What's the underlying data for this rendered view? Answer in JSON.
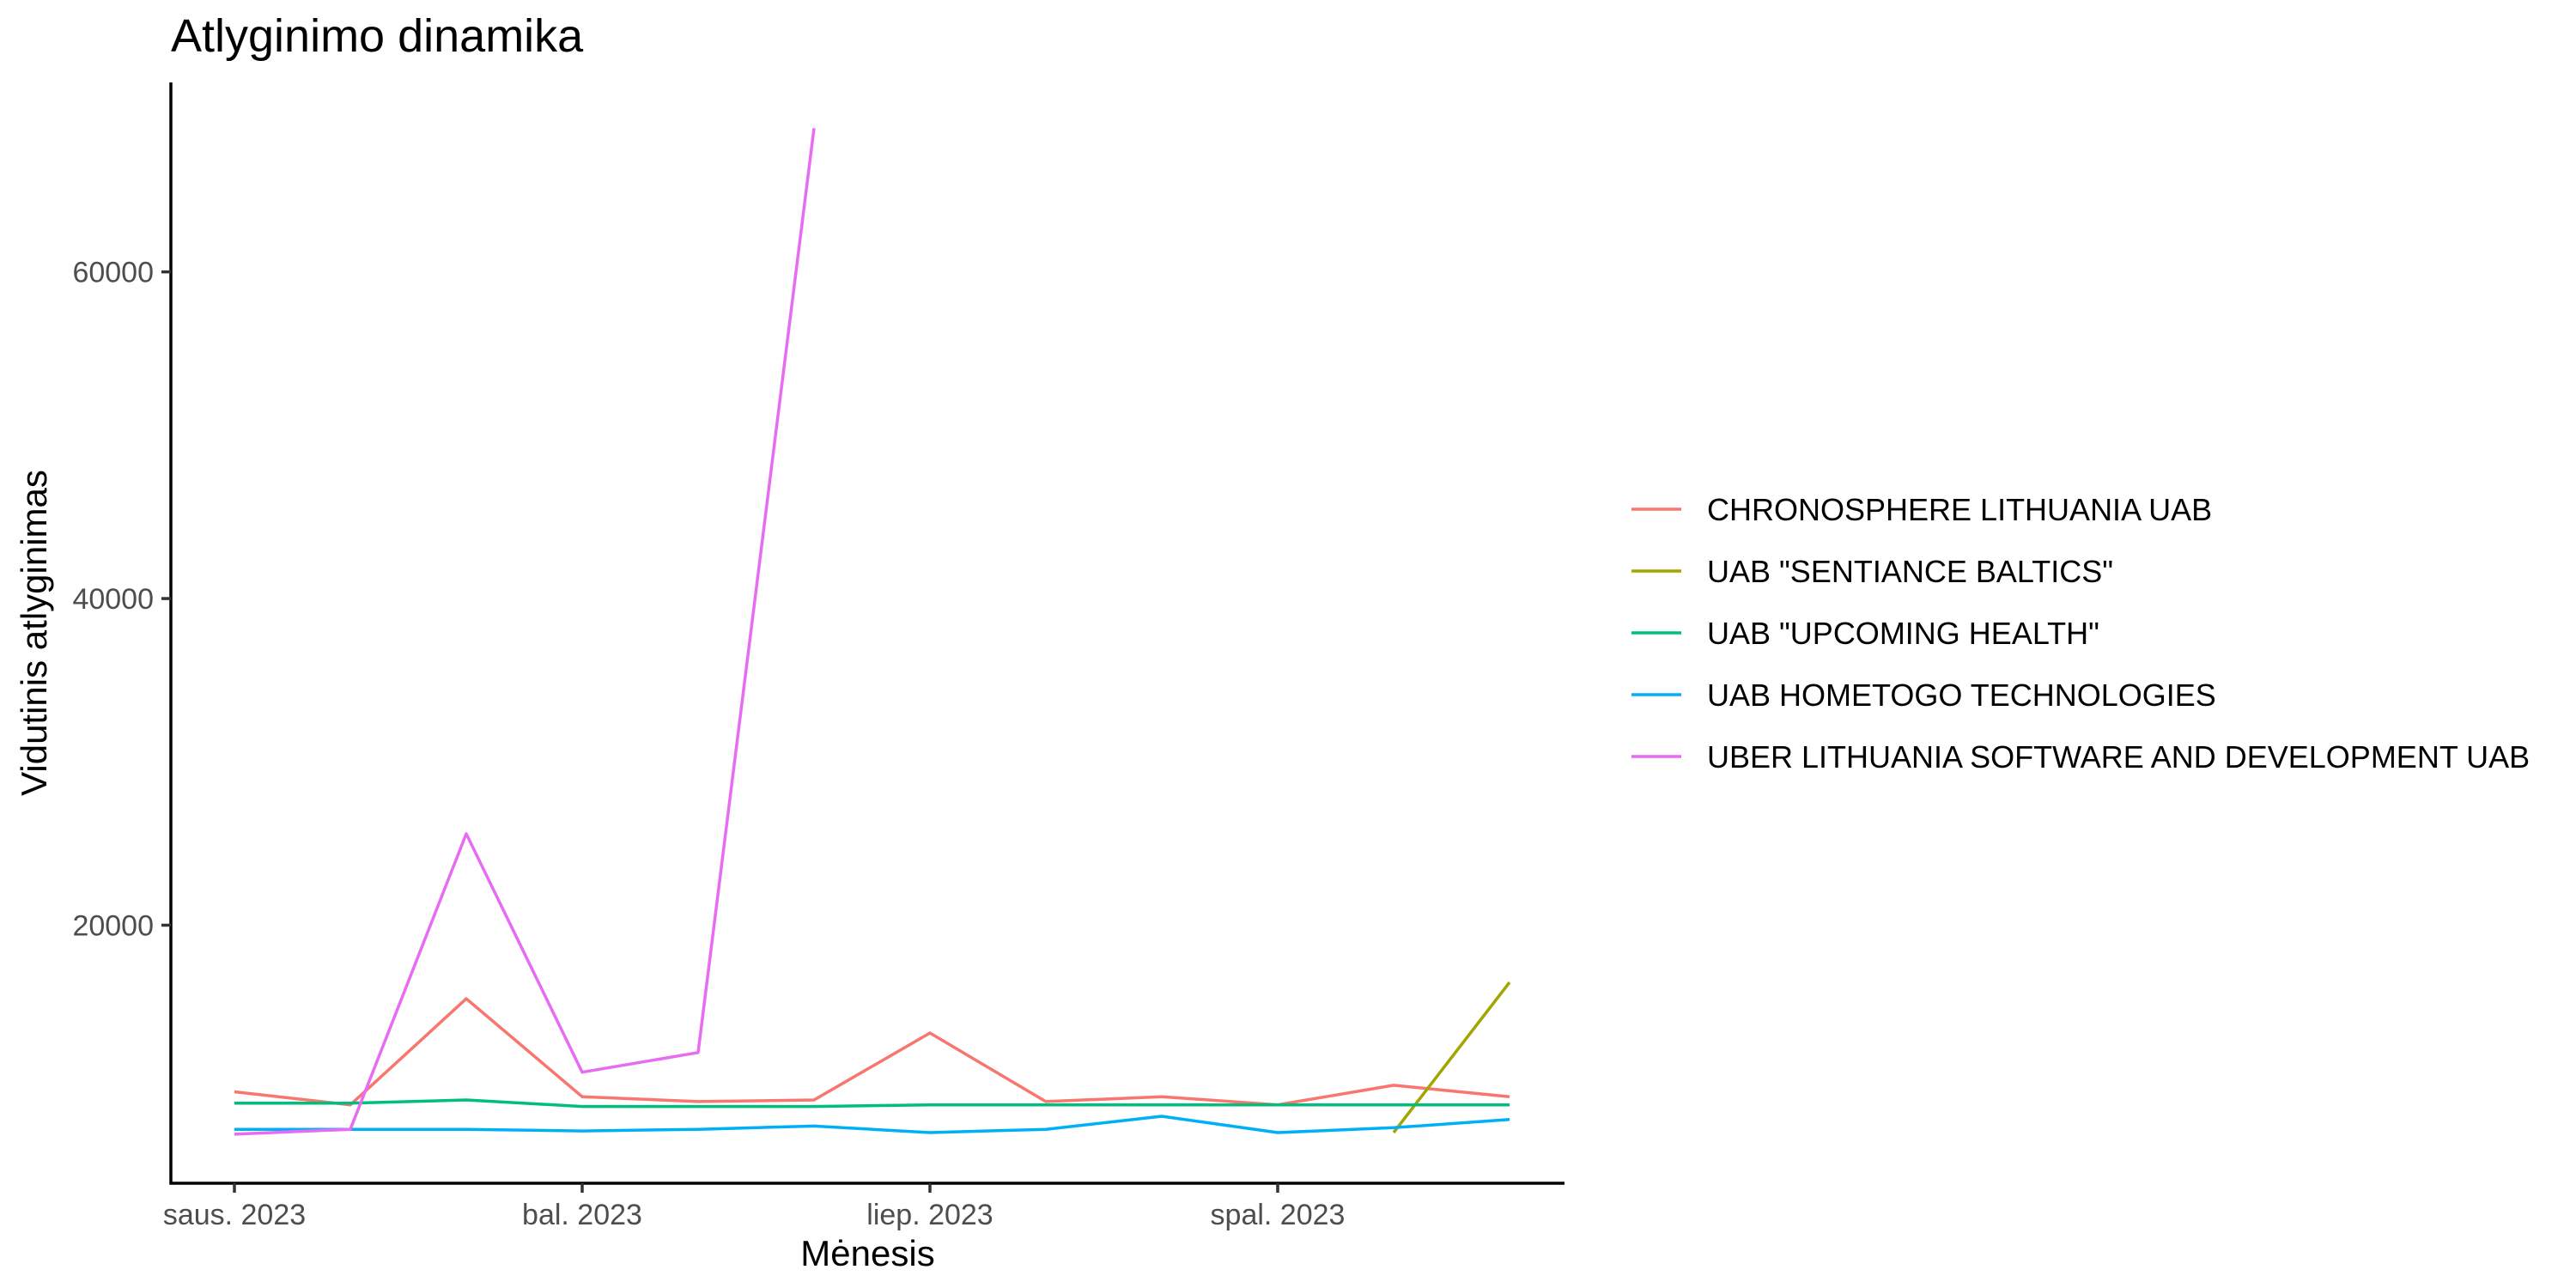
{
  "chart_data": {
    "type": "line",
    "title": "Atlyginimo dinamika",
    "xlabel": "Mėnesis",
    "ylabel": "Vidutinis atlyginimas",
    "x": [
      "2023-01",
      "2023-02",
      "2023-03",
      "2023-04",
      "2023-05",
      "2023-06",
      "2023-07",
      "2023-08",
      "2023-09",
      "2023-10",
      "2023-11",
      "2023-12"
    ],
    "x_ticks": [
      {
        "x": "2023-01",
        "label": "saus. 2023"
      },
      {
        "x": "2023-04",
        "label": "bal. 2023"
      },
      {
        "x": "2023-07",
        "label": "liep. 2023"
      },
      {
        "x": "2023-10",
        "label": "spal. 2023"
      }
    ],
    "y_ticks": [
      20000,
      40000,
      60000
    ],
    "ylim": [
      4200,
      71600
    ],
    "grid": false,
    "legend_position": "right",
    "series": [
      {
        "name": "CHRONOSPHERE LITHUANIA UAB",
        "color": "#F8766D",
        "values": [
          9800,
          9000,
          15500,
          9500,
          9200,
          9300,
          13400,
          9200,
          9500,
          9000,
          10200,
          9500
        ]
      },
      {
        "name": "UAB \"SENTIANCE BALTICS\"",
        "color": "#A3A500",
        "values": [
          null,
          null,
          null,
          null,
          null,
          null,
          null,
          null,
          null,
          null,
          7300,
          16500
        ]
      },
      {
        "name": "UAB \"UPCOMING HEALTH\"",
        "color": "#00BF7D",
        "values": [
          9100,
          9100,
          9300,
          8900,
          8900,
          8900,
          9000,
          9000,
          9000,
          9000,
          9000,
          9000
        ]
      },
      {
        "name": "UAB HOMETOGO TECHNOLOGIES",
        "color": "#00B0F6",
        "values": [
          7500,
          7500,
          7500,
          7400,
          7500,
          7700,
          7300,
          7500,
          8300,
          7300,
          7600,
          8100
        ]
      },
      {
        "name": "UBER LITHUANIA SOFTWARE AND DEVELOPMENT UAB",
        "color": "#E76BF3",
        "values": [
          7200,
          7500,
          25600,
          11000,
          12200,
          68800,
          null,
          null,
          null,
          null,
          null,
          null
        ]
      }
    ]
  }
}
